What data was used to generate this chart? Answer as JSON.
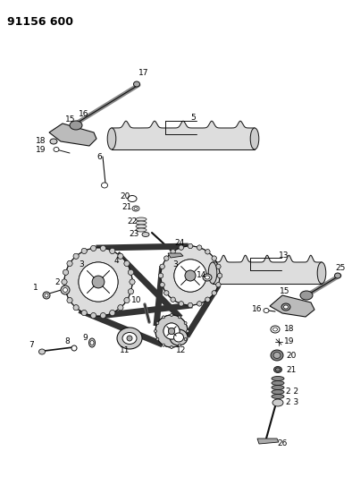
{
  "title": "91156 600",
  "bg_color": "#ffffff",
  "fg_color": "#000000",
  "fig_width": 3.94,
  "fig_height": 5.33,
  "dpi": 100,
  "gray_fill": "#cccccc",
  "dark_gray": "#888888",
  "chain_color": "#444444",
  "line_color": "#111111"
}
